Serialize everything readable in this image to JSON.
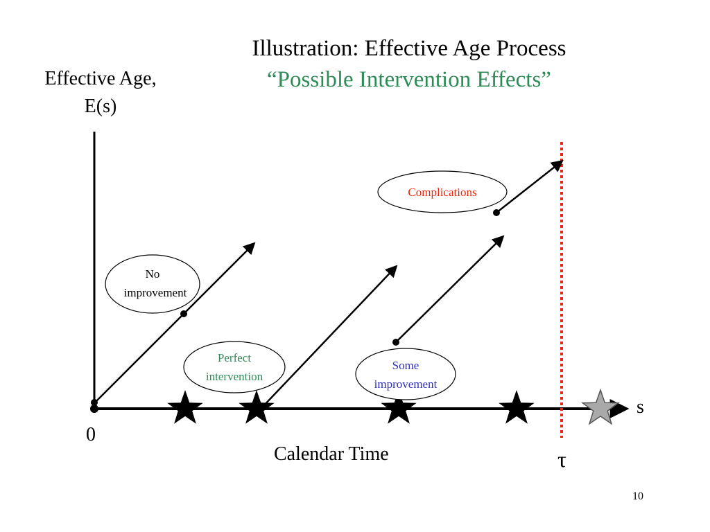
{
  "title": {
    "line1": "Illustration: Effective Age Process",
    "line2": "“Possible Intervention Effects”",
    "line2_color": "#2e8b57"
  },
  "y_axis_label": "Effective Age, E(s)",
  "x_axis_label": "Calendar Time",
  "x_axis_symbol": "s",
  "origin_label": "0",
  "tau_label": "τ",
  "page_number": "10",
  "callouts": {
    "no_improvement": {
      "line1": "No",
      "line2": "improvement",
      "color": "#000000"
    },
    "perfect_intervention": {
      "line1": "Perfect",
      "line2": "intervention",
      "color": "#2e8b57"
    },
    "some_improvement": {
      "line1": "Some",
      "line2": "improvement",
      "color": "#2e2eb8"
    },
    "complications": {
      "line1": "Complications",
      "color": "#e8280e"
    }
  },
  "colors": {
    "tau_line": "#e8280e",
    "event_star": "#000000",
    "censor_star": "#a9a9a9"
  },
  "events": {
    "filled_stars": 4,
    "censor_stars": 1
  }
}
